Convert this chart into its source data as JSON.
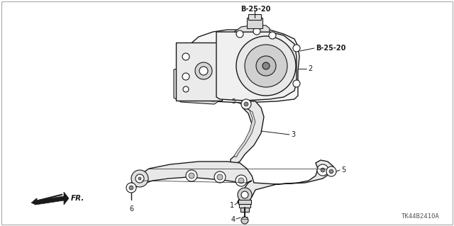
{
  "background_color": "#ffffff",
  "line_color": "#1a1a1a",
  "part_number": "TK44B2410A",
  "labels": {
    "B_25_20_top": "B-25-20",
    "B_25_20_right": "B-25-20",
    "fr_label": "FR.",
    "part_num_label": "TK44B2410A"
  },
  "figsize": [
    6.4,
    3.19
  ],
  "dpi": 100
}
